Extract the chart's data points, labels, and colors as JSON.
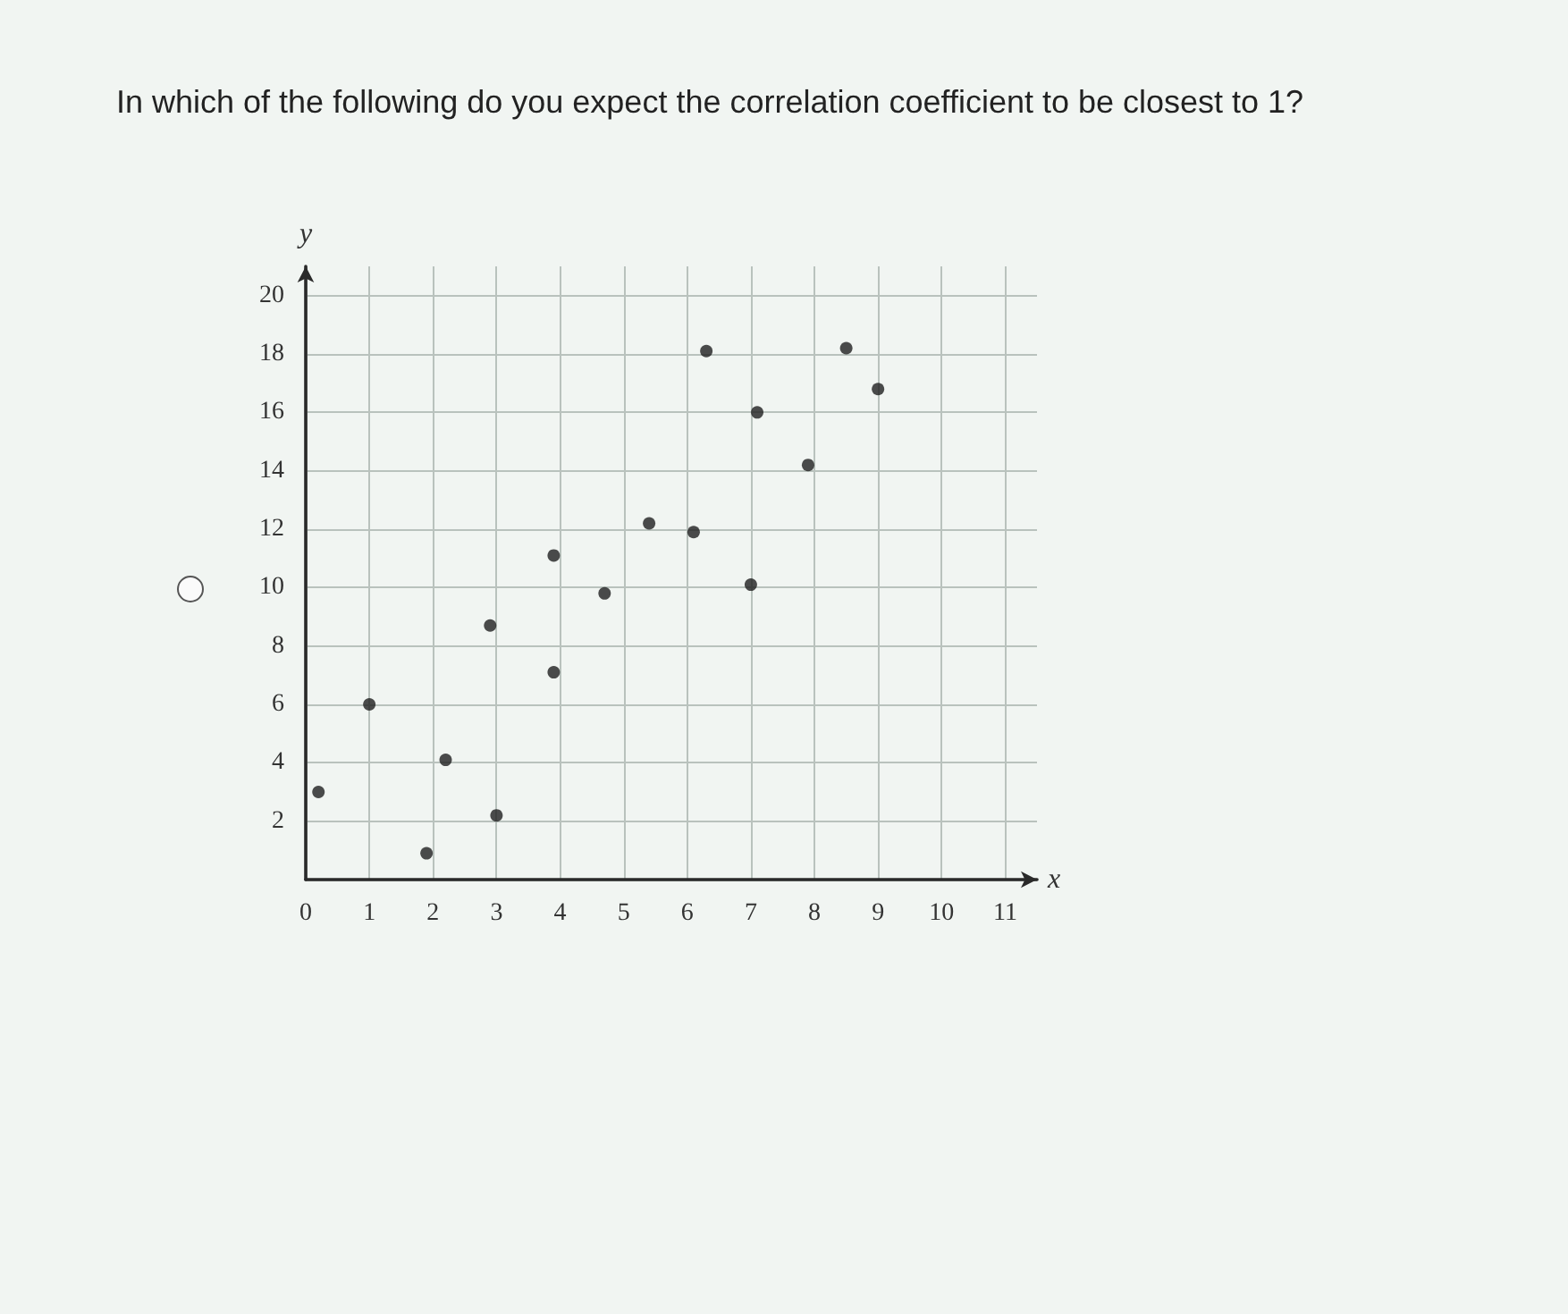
{
  "chart_data": {
    "type": "scatter",
    "title": "In which of the following do you expect the correlation coefficient to be closest to 1?",
    "xlabel": "x",
    "ylabel": "y",
    "x": [
      0.2,
      1.0,
      2.2,
      1.9,
      3.0,
      2.9,
      3.9,
      3.9,
      4.7,
      5.4,
      6.1,
      6.3,
      7.1,
      7.9,
      7.0,
      8.5,
      9.0
    ],
    "values": [
      3.0,
      6.0,
      4.1,
      0.9,
      2.2,
      8.7,
      11.1,
      7.1,
      9.8,
      12.2,
      11.9,
      18.1,
      16.0,
      14.2,
      10.1,
      18.2,
      16.8
    ],
    "color": "#1f1f1f",
    "xlim": [
      0,
      11.5
    ],
    "ylim": [
      0,
      21
    ],
    "xticks": [
      0,
      1,
      2,
      3,
      4,
      5,
      6,
      7,
      8,
      9,
      10,
      11
    ],
    "yticks": [
      {
        "value": 0,
        "label": null
      },
      2,
      4,
      6,
      8,
      10,
      12,
      14,
      16,
      18,
      20
    ],
    "grid": true,
    "marker": "circle"
  }
}
